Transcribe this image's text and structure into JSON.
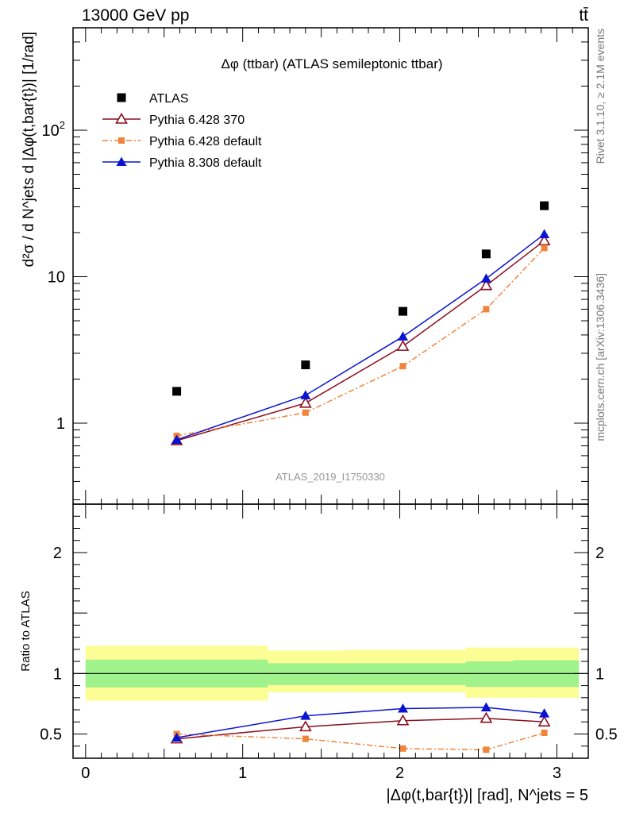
{
  "header": {
    "left": "13000 GeV pp",
    "right": "tt̄"
  },
  "side_labels": {
    "rivet": "Rivet 3.1.10, ≥ 2.1M events",
    "mcplots": "mcplots.cern.ch [arXiv:1306.3436]"
  },
  "chart_data": [
    {
      "type": "scatter",
      "title": "Δφ (ttbar) (ATLAS semileptonic ttbar)",
      "watermark": "ATLAS_2019_I1750330",
      "ylabel": "d²σ / d N^jets d |Δφ(t,bar{t})| [1/rad]",
      "yscale": "log",
      "ylim": [
        0.28,
        500
      ],
      "xlim": [
        -0.08,
        3.2
      ],
      "yticks": [
        {
          "value": 1,
          "label": "1"
        },
        {
          "value": 10,
          "label": "10"
        },
        {
          "value": 100,
          "label": "10²"
        }
      ],
      "legend_position": "top-left",
      "x": [
        0.58,
        1.4,
        2.02,
        2.55,
        2.92
      ],
      "series": [
        {
          "name": "ATLAS",
          "color": "#000000",
          "marker": "square",
          "line": "none",
          "values": [
            1.65,
            2.5,
            5.8,
            14.3,
            30.5
          ]
        },
        {
          "name": "Pythia 6.428 370",
          "color": "#8b0e1f",
          "marker": "triangle-open",
          "line": "solid",
          "values": [
            0.76,
            1.37,
            3.35,
            8.7,
            17.6
          ]
        },
        {
          "name": "Pythia 6.428 default",
          "color": "#f0843a",
          "marker": "square-small",
          "line": "dashdot",
          "values": [
            0.82,
            1.18,
            2.45,
            6.0,
            15.7
          ]
        },
        {
          "name": "Pythia 8.308 default",
          "color": "#0a14d0",
          "marker": "triangle",
          "line": "solid",
          "values": [
            0.77,
            1.55,
            3.9,
            9.7,
            19.5
          ]
        }
      ]
    },
    {
      "type": "line",
      "ylabel": "Ratio to ATLAS",
      "xlabel": "|Δφ(t,bar{t})| [rad], N^jets = 5",
      "ylim": [
        0.3,
        2.4
      ],
      "xlim": [
        -0.08,
        3.2
      ],
      "yticks": [
        {
          "value": 0.5,
          "label": "0.5"
        },
        {
          "value": 1,
          "label": "1"
        },
        {
          "value": 2,
          "label": "2"
        }
      ],
      "xticks": [
        {
          "value": 0,
          "label": "0"
        },
        {
          "value": 1,
          "label": "1"
        },
        {
          "value": 2,
          "label": "2"
        },
        {
          "value": 3,
          "label": "3"
        }
      ],
      "bins": [
        {
          "lo": 0.0,
          "hi": 1.16,
          "stat": [
            0.885,
            1.115
          ],
          "total": [
            0.775,
            1.23
          ]
        },
        {
          "lo": 1.16,
          "hi": 1.65,
          "stat": [
            0.905,
            1.085
          ],
          "total": [
            0.845,
            1.19
          ]
        },
        {
          "lo": 1.65,
          "hi": 2.42,
          "stat": [
            0.905,
            1.085
          ],
          "total": [
            0.845,
            1.195
          ]
        },
        {
          "lo": 2.42,
          "hi": 2.72,
          "stat": [
            0.89,
            1.1
          ],
          "total": [
            0.8,
            1.215
          ]
        },
        {
          "lo": 2.72,
          "hi": 3.14,
          "stat": [
            0.89,
            1.11
          ],
          "total": [
            0.8,
            1.215
          ]
        }
      ],
      "colors": {
        "stat": "#a0f28c",
        "total": "#fdfd96"
      },
      "x": [
        0.58,
        1.4,
        2.02,
        2.55,
        2.92
      ],
      "series": [
        {
          "name": "Pythia 6.428 370",
          "color": "#8b0e1f",
          "marker": "triangle-open",
          "line": "solid",
          "values": [
            0.46,
            0.56,
            0.61,
            0.63,
            0.6
          ]
        },
        {
          "name": "Pythia 6.428 default",
          "color": "#f0843a",
          "marker": "square-small",
          "line": "dashdot",
          "values": [
            0.5,
            0.46,
            0.38,
            0.37,
            0.51
          ]
        },
        {
          "name": "Pythia 8.308 default",
          "color": "#0a14d0",
          "marker": "triangle",
          "line": "solid",
          "values": [
            0.47,
            0.65,
            0.71,
            0.72,
            0.67
          ]
        }
      ]
    }
  ]
}
